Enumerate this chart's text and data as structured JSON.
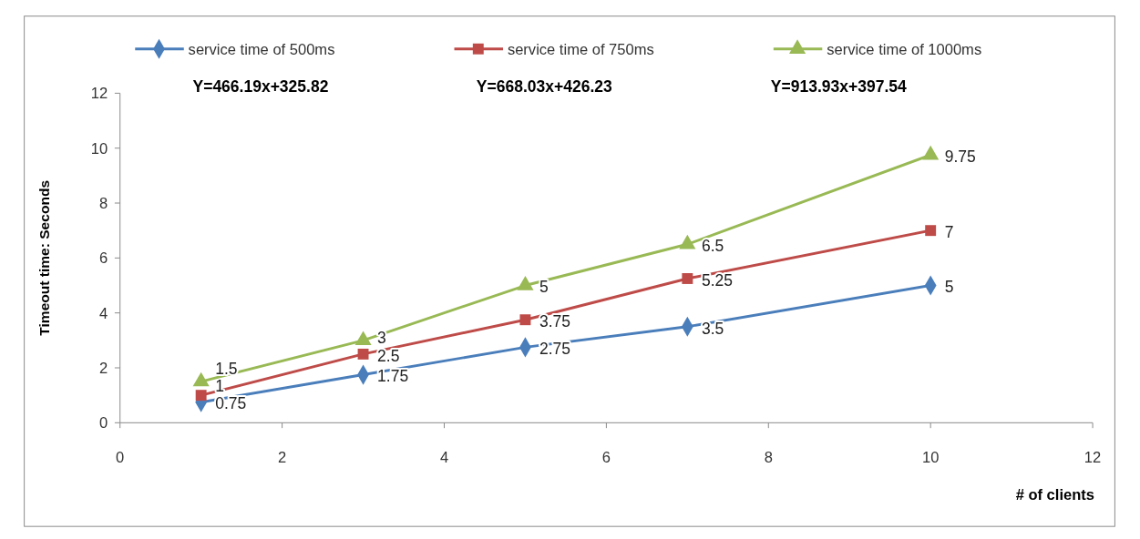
{
  "chart_data": {
    "type": "line",
    "xlabel": "# of clients",
    "ylabel": "Timeout time: Seconds",
    "x": [
      1,
      3,
      5,
      7,
      10
    ],
    "series": [
      {
        "name": "service time of 500ms",
        "color": "#4a7ebb",
        "marker": "diamond",
        "values": [
          0.75,
          1.75,
          2.75,
          3.5,
          5
        ]
      },
      {
        "name": "service time of 750ms",
        "color": "#be4b48",
        "marker": "square",
        "values": [
          1,
          2.5,
          3.75,
          5.25,
          7
        ]
      },
      {
        "name": "service time of 1000ms",
        "color": "#98b954",
        "marker": "triangle",
        "values": [
          1.5,
          3,
          5,
          6.5,
          9.75
        ]
      }
    ],
    "annotations": [
      "Y=466.19x+325.82",
      "Y=668.03x+426.23",
      "Y=913.93x+397.54"
    ],
    "xlim": [
      0,
      12
    ],
    "xticks": [
      0,
      2,
      4,
      6,
      8,
      10,
      12
    ],
    "ylim": [
      0,
      12
    ],
    "yticks": [
      0,
      2,
      4,
      6,
      8,
      10,
      12
    ],
    "data_labels": true,
    "legend": "top",
    "grid": false,
    "line_style": "solid"
  }
}
